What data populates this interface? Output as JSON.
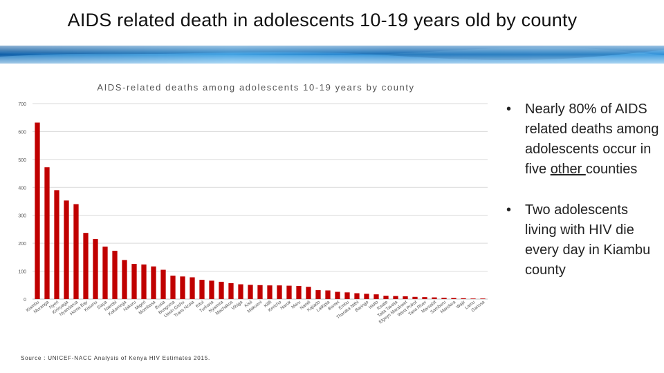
{
  "slide": {
    "title": "AIDS related death in adolescents 10-19 years old by county",
    "source": "Source : UNICEF-NACC  Analysis of Kenya HIV Estimates 2015."
  },
  "bullets": [
    {
      "dot": "•",
      "before": "Nearly 80% of AIDS related deaths among adolescents occur in five ",
      "underlined": "other ",
      "after": "counties"
    },
    {
      "dot": "•",
      "text": "Two adolescents living with HIV die every day in Kiambu county"
    }
  ],
  "colors": {
    "bar": "#c00000",
    "grid": "#d9d9d9",
    "banner": "#1f7fc4",
    "text": "#222222"
  },
  "chart_data": {
    "type": "bar",
    "title": "AIDS-related deaths among adolescents 10-19 years by county",
    "xlabel": "",
    "ylabel": "",
    "ylim": [
      0,
      700
    ],
    "yticks": [
      0,
      100,
      200,
      300,
      400,
      500,
      600,
      700
    ],
    "grid": true,
    "categories": [
      "Kiambu",
      "Muranga",
      "Nyeri",
      "Kirinyaga",
      "Nyandarua",
      "Homa Bay",
      "Kisumu",
      "Siaya",
      "Nairobi",
      "Kakamega",
      "Nakuru",
      "Migori",
      "Mombasa",
      "Busia",
      "Bungoma",
      "Uasin Gishu",
      "Trans Nzoia",
      "Kitui",
      "Turkana",
      "Nyamira",
      "Machakos",
      "Vihiga",
      "Kisii",
      "Makueni",
      "Kilifi",
      "Kericho",
      "Narok",
      "Meru",
      "Nandi",
      "Kajiado",
      "Laikipia",
      "Bomet",
      "Embu",
      "Tharaka Nithi",
      "Baringo",
      "Isiolo",
      "Kwale",
      "Taita Taveta",
      "Elgeyo Marakwet",
      "West Pokot",
      "Tana River",
      "Marsabit",
      "Samburu",
      "Mandera",
      "Wajir",
      "Lamu",
      "Garissa"
    ],
    "values": [
      632,
      472,
      390,
      353,
      340,
      237,
      215,
      188,
      173,
      140,
      126,
      124,
      117,
      105,
      84,
      81,
      78,
      69,
      66,
      62,
      57,
      53,
      51,
      50,
      49,
      49,
      48,
      47,
      44,
      32,
      31,
      26,
      24,
      21,
      19,
      17,
      12,
      11,
      10,
      8,
      7,
      6,
      5,
      4,
      3,
      2,
      2
    ]
  }
}
